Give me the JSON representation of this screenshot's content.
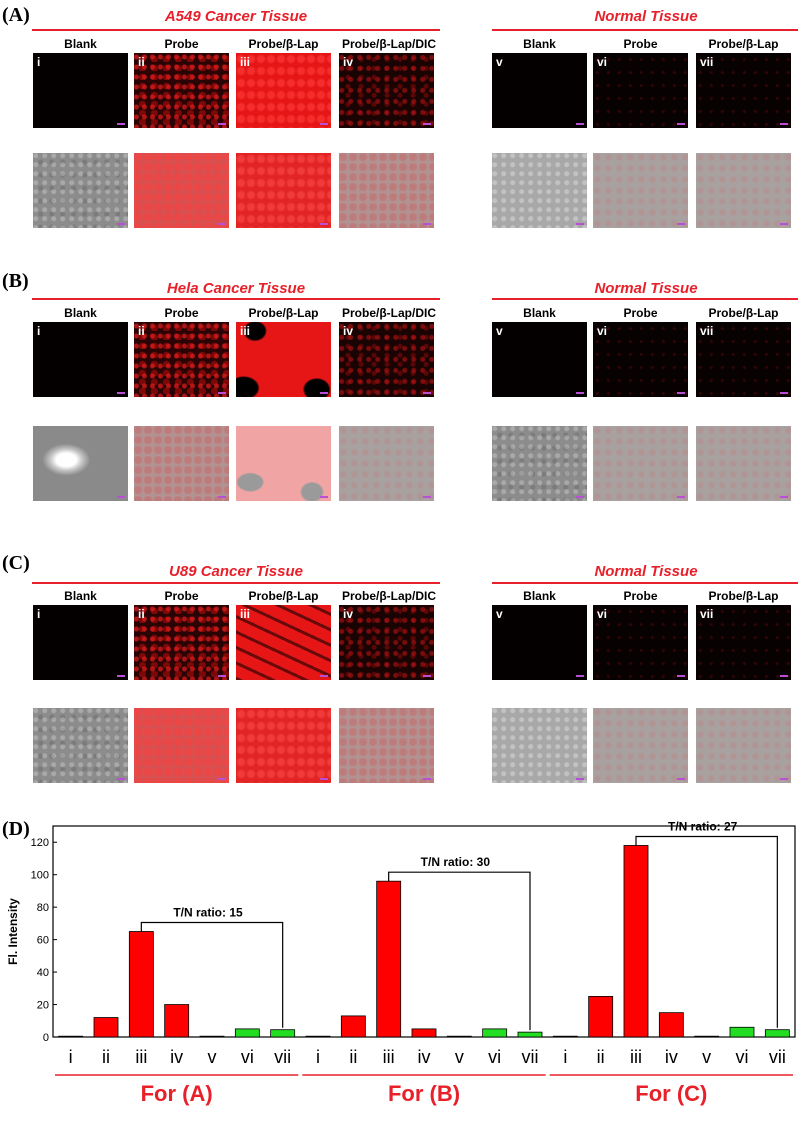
{
  "panel_labels": [
    "(A)",
    "(B)",
    "(C)",
    "(D)"
  ],
  "panels": [
    {
      "cancer_title": "A549 Cancer Tissue",
      "normal_title": "Normal Tissue",
      "cancer_columns": [
        {
          "label": "Blank",
          "num": "i"
        },
        {
          "label": "Probe",
          "num": "ii"
        },
        {
          "label": "Probe/β-Lap",
          "num": "iii"
        },
        {
          "label": "Probe/β-Lap/DIC",
          "num": "iv"
        }
      ],
      "normal_columns": [
        {
          "label": "Blank",
          "num": "v"
        },
        {
          "label": "Probe",
          "num": "vi"
        },
        {
          "label": "Probe/β-Lap",
          "num": "vii"
        }
      ]
    },
    {
      "cancer_title": "Hela Cancer Tissue",
      "normal_title": "Normal Tissue",
      "cancer_columns": [
        {
          "label": "Blank",
          "num": "i"
        },
        {
          "label": "Probe",
          "num": "ii"
        },
        {
          "label": "Probe/β-Lap",
          "num": "iii"
        },
        {
          "label": "Probe/β-Lap/DIC",
          "num": "iv"
        }
      ],
      "normal_columns": [
        {
          "label": "Blank",
          "num": "v"
        },
        {
          "label": "Probe",
          "num": "vi"
        },
        {
          "label": "Probe/β-Lap",
          "num": "vii"
        }
      ]
    },
    {
      "cancer_title": "U89 Cancer Tissue",
      "normal_title": "Normal Tissue",
      "cancer_columns": [
        {
          "label": "Blank",
          "num": "i"
        },
        {
          "label": "Probe",
          "num": "ii"
        },
        {
          "label": "Probe/β-Lap",
          "num": "iii"
        },
        {
          "label": "Probe/β-Lap/DIC",
          "num": "iv"
        }
      ],
      "normal_columns": [
        {
          "label": "Blank",
          "num": "v"
        },
        {
          "label": "Probe",
          "num": "vi"
        },
        {
          "label": "Probe/β-Lap",
          "num": "vii"
        }
      ]
    }
  ],
  "chart_data": {
    "type": "bar",
    "ylabel": "Fl. Intensity",
    "ylim": [
      0,
      130
    ],
    "yticks": [
      0,
      20,
      40,
      60,
      80,
      100,
      120
    ],
    "colors": {
      "cancer": "#ff0000",
      "normal": "#22dd22"
    },
    "groups": [
      {
        "label": "For (A)",
        "categories": [
          "i",
          "ii",
          "iii",
          "iv",
          "v",
          "vi",
          "vii"
        ],
        "values": [
          0.5,
          12,
          65,
          20,
          0.5,
          5,
          4.5
        ],
        "ratio_label": "T/N ratio: 15"
      },
      {
        "label": "For (B)",
        "categories": [
          "i",
          "ii",
          "iii",
          "iv",
          "v",
          "vi",
          "vii"
        ],
        "values": [
          0.5,
          13,
          96,
          5,
          0.5,
          5,
          3
        ],
        "ratio_label": "T/N ratio: 30"
      },
      {
        "label": "For (C)",
        "categories": [
          "i",
          "ii",
          "iii",
          "iv",
          "v",
          "vi",
          "vii"
        ],
        "values": [
          0.5,
          25,
          118,
          15,
          0.5,
          6,
          4.5
        ],
        "ratio_label": "T/N ratio: 27"
      }
    ]
  }
}
